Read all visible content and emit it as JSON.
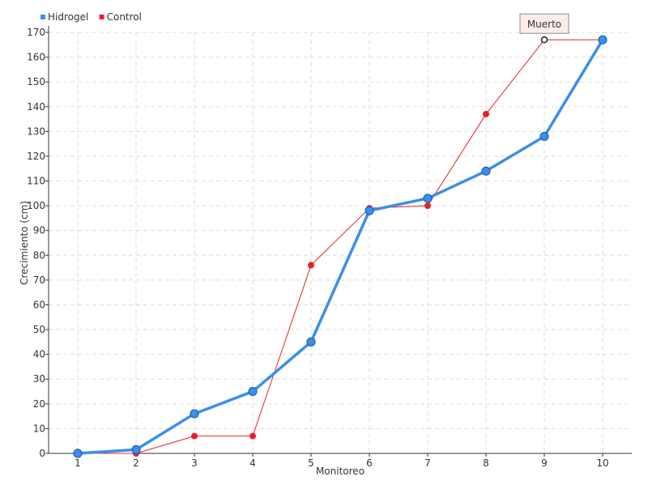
{
  "chart_data": {
    "type": "line",
    "title": "",
    "xlabel": "Monitoreo",
    "ylabel": "Crecimiento (cm)",
    "categories": [
      "1",
      "2",
      "3",
      "4",
      "5",
      "6",
      "7",
      "8",
      "9",
      "10"
    ],
    "ylim": [
      0,
      170
    ],
    "yticks": [
      0,
      10,
      20,
      30,
      40,
      50,
      60,
      70,
      80,
      90,
      100,
      110,
      120,
      130,
      140,
      150,
      160,
      170
    ],
    "grid": true,
    "legend_position": "top-left",
    "series": [
      {
        "name": "Hidrogel",
        "color": "#3b8fe8",
        "values": [
          0,
          1.5,
          16,
          25,
          45,
          98,
          103,
          114,
          128,
          167
        ]
      },
      {
        "name": "Control",
        "color": "#e8202c",
        "values": [
          0,
          0,
          7,
          7,
          76,
          99,
          100,
          137,
          167,
          167
        ]
      }
    ],
    "annotations": [
      {
        "text": "Muerto",
        "series": "Control",
        "category": "9",
        "value": 167
      }
    ]
  }
}
